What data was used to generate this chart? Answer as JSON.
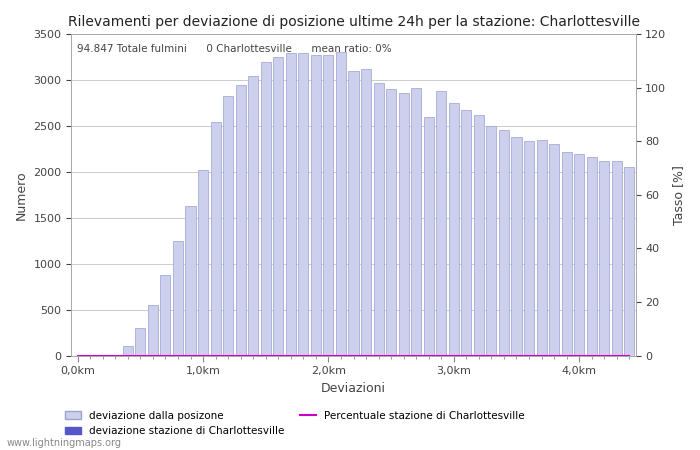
{
  "title": "Rilevamenti per deviazione di posizione ultime 24h per la stazione: Charlottesville",
  "xlabel": "Deviazioni",
  "ylabel_left": "Numero",
  "ylabel_right": "Tasso [%]",
  "annotation": "94.847 Totale fulmini      0 Charlottesville      mean ratio: 0%",
  "watermark": "www.lightningmaps.org",
  "ylim_left": [
    0,
    3500
  ],
  "ylim_right": [
    0,
    120
  ],
  "yticks_left": [
    0,
    500,
    1000,
    1500,
    2000,
    2500,
    3000,
    3500
  ],
  "yticks_right": [
    0,
    20,
    40,
    60,
    80,
    100,
    120
  ],
  "bar_color": "#cdd0ed",
  "bar_edge_color": "#9da0d0",
  "station_bar_color": "#5555cc",
  "line_color": "#cc00cc",
  "background_color": "#ffffff",
  "grid_color": "#cccccc",
  "bar_values": [
    0,
    0,
    0,
    0,
    100,
    300,
    550,
    880,
    1250,
    1625,
    2020,
    2550,
    2830,
    2950,
    3050,
    3200,
    3250,
    3300,
    3300,
    3280,
    3280,
    3310,
    3100,
    3120,
    2970,
    2900,
    2860,
    2920,
    2600,
    2880,
    2750,
    2680,
    2620,
    2500,
    2460,
    2380,
    2340,
    2350,
    2300,
    2220,
    2200,
    2160,
    2120,
    2120,
    2050
  ],
  "station_values": [
    0,
    0,
    0,
    0,
    0,
    0,
    0,
    0,
    0,
    0,
    0,
    0,
    0,
    0,
    0,
    0,
    0,
    0,
    0,
    0,
    0,
    0,
    0,
    0,
    0,
    0,
    0,
    0,
    0,
    0,
    0,
    0,
    0,
    0,
    0,
    0,
    0,
    0,
    0,
    0,
    0,
    0,
    0,
    0,
    0
  ],
  "ratio_values": [
    0,
    0,
    0,
    0,
    0,
    0,
    0,
    0,
    0,
    0,
    0,
    0,
    0,
    0,
    0,
    0,
    0,
    0,
    0,
    0,
    0,
    0,
    0,
    0,
    0,
    0,
    0,
    0,
    0,
    0,
    0,
    0,
    0,
    0,
    0,
    0,
    0,
    0,
    0,
    0,
    0,
    0,
    0,
    0,
    0
  ],
  "km_tick_indices": [
    0,
    10,
    20,
    30,
    40
  ],
  "km_tick_labels": [
    "0,0km",
    "1,0km",
    "2,0km",
    "3,0km",
    "4,0km"
  ],
  "legend_entries": [
    {
      "label": "deviazione dalla posizone",
      "color": "#cdd0ed",
      "edge": "#9da0d0",
      "type": "bar"
    },
    {
      "label": "deviazione stazione di Charlottesville",
      "color": "#5555cc",
      "edge": "#5555cc",
      "type": "bar"
    },
    {
      "label": "Percentuale stazione di Charlottesville",
      "color": "#cc00cc",
      "type": "line"
    }
  ]
}
